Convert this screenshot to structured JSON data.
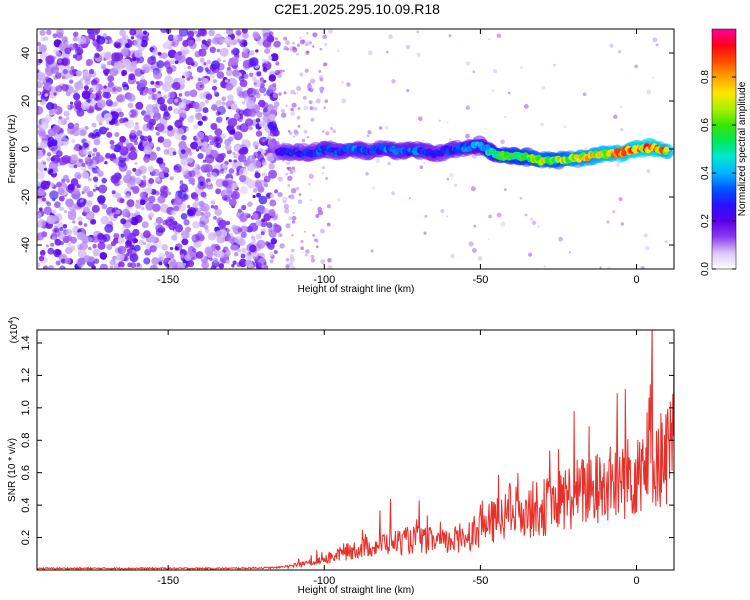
{
  "title": "C2E1.2025.295.10.09.R18",
  "chart_data": [
    {
      "type": "heatmap",
      "name": "spectrogram",
      "xlabel": "Height of straight line (km)",
      "ylabel": "Frequency (Hz)",
      "xlim": [
        -192,
        12
      ],
      "ylim": [
        -50,
        50
      ],
      "xticks": [
        -150,
        -100,
        -50,
        0
      ],
      "yticks": [
        -40,
        -20,
        0,
        20,
        40
      ],
      "colorbar": {
        "label": "Normalized spectral amplitude",
        "range": [
          0,
          1
        ],
        "ticks": [
          0.0,
          0.2,
          0.4,
          0.6,
          0.8
        ],
        "colors": [
          "#ffffff",
          "#d9c7f7",
          "#8d3cf0",
          "#5b00e8",
          "#2a10ff",
          "#0054ff",
          "#00b4ff",
          "#00e6d2",
          "#00e85a",
          "#39e600",
          "#aaf000",
          "#ffe600",
          "#ffa000",
          "#ff4a00",
          "#ff0018",
          "#ff00a0"
        ]
      },
      "signal_track": {
        "x": [
          -115,
          -110,
          -105,
          -100,
          -95,
          -90,
          -85,
          -80,
          -75,
          -70,
          -65,
          -60,
          -55,
          -50,
          -45,
          -40,
          -35,
          -30,
          -25,
          -20,
          -15,
          -10,
          -5,
          0,
          5,
          10
        ],
        "y": [
          -1.5,
          -1.0,
          -2.0,
          0.0,
          -1.0,
          0.0,
          -1.0,
          0.5,
          -1.0,
          -0.5,
          -2.0,
          -0.5,
          0.5,
          1.5,
          -2.5,
          -3.0,
          -3.5,
          -5.0,
          -4.5,
          -4.0,
          -3.0,
          -2.0,
          -1.5,
          0.0,
          0.5,
          -1.0
        ],
        "amplitude": [
          0.25,
          0.3,
          0.3,
          0.35,
          0.3,
          0.35,
          0.3,
          0.35,
          0.35,
          0.35,
          0.3,
          0.3,
          0.35,
          0.4,
          0.55,
          0.6,
          0.6,
          0.7,
          0.65,
          0.75,
          0.75,
          0.8,
          0.85,
          0.85,
          0.9,
          0.8
        ]
      },
      "noise_region_km": [
        -192,
        -115
      ]
    },
    {
      "type": "line",
      "name": "snr",
      "xlabel": "Height of straight line (km)",
      "ylabel": "SNR (10 * v/v)",
      "y_scale_label": "(x10",
      "y_scale_exponent": "4",
      "y_scale_suffix": ")",
      "xlim": [
        -192,
        12
      ],
      "ylim": [
        0,
        1.48
      ],
      "xticks": [
        -150,
        -100,
        -50,
        0
      ],
      "yticks": [
        0.2,
        0.4,
        0.6,
        0.8,
        1.0,
        1.2,
        1.4
      ],
      "color": "#e8302a",
      "trend_x": [
        -192,
        -130,
        -115,
        -110,
        -105,
        -100,
        -90,
        -80,
        -70,
        -60,
        -50,
        -40,
        -30,
        -20,
        -10,
        0,
        5,
        8,
        12
      ],
      "trend_y": [
        0.01,
        0.01,
        0.015,
        0.03,
        0.05,
        0.08,
        0.15,
        0.2,
        0.22,
        0.2,
        0.3,
        0.42,
        0.45,
        0.55,
        0.6,
        0.72,
        0.85,
        0.8,
        0.9
      ]
    }
  ]
}
